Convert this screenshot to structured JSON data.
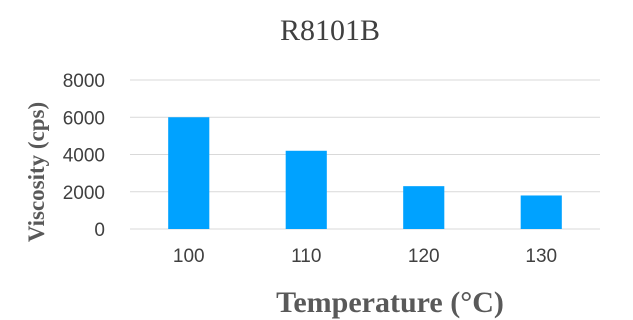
{
  "chart_data": {
    "type": "bar",
    "title": "R8101B",
    "xlabel": "Temperature (°C)",
    "ylabel": "Viscosity (cps)",
    "categories": [
      "100",
      "110",
      "120",
      "130"
    ],
    "values": [
      6000,
      4200,
      2300,
      1800
    ],
    "ylim": [
      0,
      8000
    ],
    "yticks": [
      "0",
      "2000",
      "4000",
      "6000",
      "8000"
    ],
    "grid": true,
    "legend": "none",
    "bar_color": "#00a2ff"
  }
}
